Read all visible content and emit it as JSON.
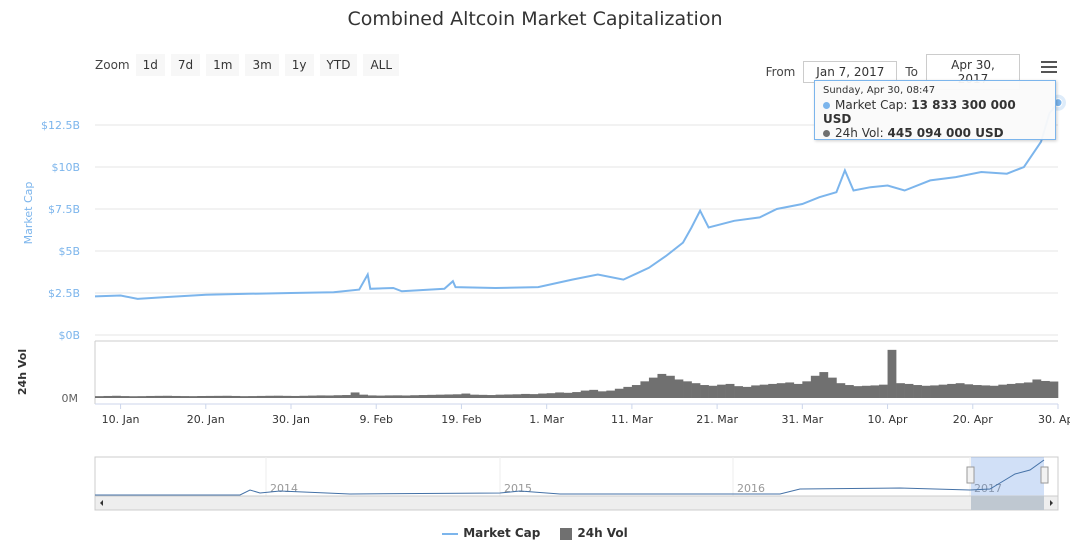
{
  "title": "Combined Altcoin Market Capitalization",
  "zoom": {
    "label": "Zoom",
    "buttons": [
      "1d",
      "7d",
      "1m",
      "3m",
      "1y",
      "YTD",
      "ALL"
    ]
  },
  "range": {
    "from_label": "From",
    "from": "Jan 7, 2017",
    "to_label": "To",
    "to": "Apr 30, 2017"
  },
  "menu_icon": "hamburger-icon",
  "tooltip": {
    "date": "Sunday, Apr 30, 08:47",
    "cap_label": "Market Cap:",
    "cap_value": "13 833 300 000 USD",
    "vol_label": "24h Vol:",
    "vol_value": "445 094 000 USD"
  },
  "legend": [
    {
      "label": "Market Cap",
      "color": "#7cb5ec"
    },
    {
      "label": "24h Vol",
      "color": "#707070"
    }
  ],
  "navigator": {
    "years": [
      "2014",
      "2015",
      "2016",
      "2017"
    ]
  },
  "chart_data": {
    "type": "line",
    "title": "Combined Altcoin Market Capitalization",
    "x_range": [
      "2017-01-07",
      "2017-04-30"
    ],
    "x_ticks": [
      "10. Jan",
      "20. Jan",
      "30. Jan",
      "9. Feb",
      "19. Feb",
      "1. Mar",
      "11. Mar",
      "21. Mar",
      "31. Mar",
      "10. Apr",
      "20. Apr",
      "30. Apr"
    ],
    "x_tick_days": [
      3,
      13,
      23,
      33,
      43,
      53,
      63,
      73,
      83,
      93,
      103,
      113
    ],
    "y_label": "Market Cap",
    "y_ticks": [
      "$0B",
      "$2.5B",
      "$5B",
      "$7.5B",
      "$10B",
      "$12.5B"
    ],
    "y_range_B": [
      0,
      12.5
    ],
    "vol_label": "24h Vol",
    "vol_ticks": [
      "0M"
    ],
    "series": [
      {
        "name": "Market Cap",
        "unit": "B USD",
        "color": "#7cb5ec",
        "points": [
          [
            0,
            2.3
          ],
          [
            3,
            2.35
          ],
          [
            5,
            2.15
          ],
          [
            8,
            2.25
          ],
          [
            13,
            2.4
          ],
          [
            18,
            2.45
          ],
          [
            23,
            2.5
          ],
          [
            28,
            2.55
          ],
          [
            31,
            2.7
          ],
          [
            32,
            3.6
          ],
          [
            32.3,
            2.75
          ],
          [
            35,
            2.8
          ],
          [
            36,
            2.6
          ],
          [
            41,
            2.75
          ],
          [
            42,
            3.2
          ],
          [
            42.3,
            2.85
          ],
          [
            47,
            2.8
          ],
          [
            52,
            2.85
          ],
          [
            56,
            3.3
          ],
          [
            59,
            3.6
          ],
          [
            62,
            3.3
          ],
          [
            65,
            4.0
          ],
          [
            67,
            4.7
          ],
          [
            69,
            5.5
          ],
          [
            70,
            6.4
          ],
          [
            71,
            7.4
          ],
          [
            72,
            6.4
          ],
          [
            75,
            6.8
          ],
          [
            78,
            7.0
          ],
          [
            80,
            7.5
          ],
          [
            83,
            7.8
          ],
          [
            85,
            8.2
          ],
          [
            87,
            8.5
          ],
          [
            88,
            9.8
          ],
          [
            89,
            8.6
          ],
          [
            91,
            8.8
          ],
          [
            93,
            8.9
          ],
          [
            95,
            8.6
          ],
          [
            98,
            9.2
          ],
          [
            101,
            9.4
          ],
          [
            104,
            9.7
          ],
          [
            107,
            9.6
          ],
          [
            109,
            10.0
          ],
          [
            111,
            11.5
          ],
          [
            112,
            13.2
          ],
          [
            113,
            13.83
          ]
        ]
      },
      {
        "name": "24h Vol",
        "unit": "M USD",
        "color": "#707070",
        "values": [
          50,
          55,
          60,
          52,
          48,
          50,
          55,
          58,
          60,
          55,
          52,
          50,
          54,
          56,
          58,
          60,
          55,
          50,
          52,
          56,
          60,
          62,
          58,
          55,
          60,
          65,
          70,
          68,
          75,
          80,
          150,
          90,
          70,
          65,
          70,
          72,
          68,
          75,
          80,
          85,
          90,
          95,
          100,
          120,
          90,
          85,
          80,
          90,
          95,
          100,
          110,
          105,
          120,
          130,
          150,
          140,
          160,
          200,
          220,
          180,
          200,
          250,
          300,
          350,
          450,
          550,
          650,
          600,
          500,
          450,
          400,
          350,
          330,
          360,
          380,
          320,
          300,
          340,
          360,
          380,
          400,
          420,
          380,
          450,
          600,
          700,
          550,
          400,
          350,
          320,
          330,
          340,
          360,
          1300,
          400,
          380,
          350,
          330,
          340,
          360,
          380,
          400,
          370,
          350,
          340,
          330,
          360,
          380,
          400,
          420,
          500,
          460,
          445
        ]
      }
    ]
  }
}
